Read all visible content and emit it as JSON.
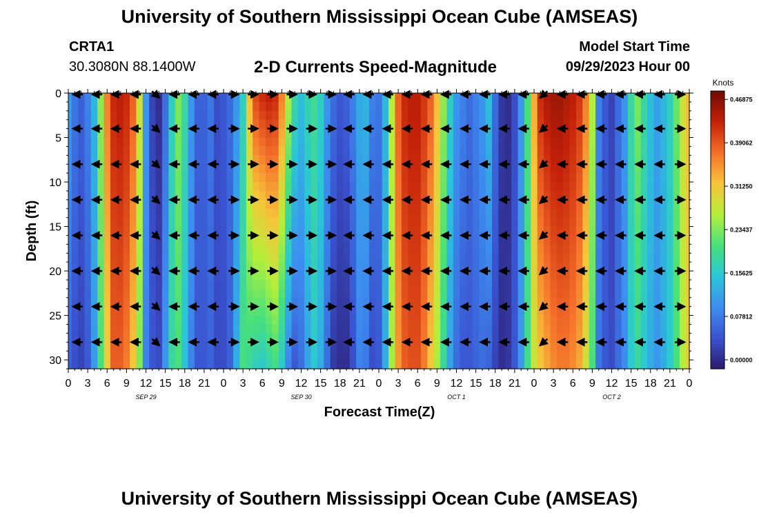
{
  "header": {
    "title": "University of Southern Mississippi Ocean Cube (AMSEAS)",
    "station": "CRTA1",
    "coordinates": "30.3080N  88.1400W",
    "subtitle": "2-D Currents Speed-Magnitude",
    "model_start_label": "Model Start Time",
    "model_start_value": "09/29/2023 Hour 00"
  },
  "footer": {
    "title": "University of Southern Mississippi Ocean Cube (AMSEAS)"
  },
  "chart_data": {
    "type": "heatmap",
    "title": "2-D Currents Speed-Magnitude",
    "xlabel": "Forecast Time(Z)",
    "ylabel": "Depth (ft)",
    "x_range_hours": [
      0,
      96
    ],
    "x_ticks_hours": [
      0,
      3,
      6,
      9,
      12,
      15,
      18,
      21,
      24,
      27,
      30,
      33,
      36,
      39,
      42,
      45,
      48,
      51,
      54,
      57,
      60,
      63,
      66,
      69,
      72,
      75,
      78,
      81,
      84,
      87,
      90,
      93,
      96
    ],
    "x_tick_labels": [
      "0",
      "3",
      "6",
      "9",
      "12",
      "15",
      "18",
      "21",
      "0",
      "3",
      "6",
      "9",
      "12",
      "15",
      "18",
      "21",
      "0",
      "3",
      "6",
      "9",
      "12",
      "15",
      "18",
      "21",
      "0",
      "3",
      "6",
      "9",
      "12",
      "15",
      "18",
      "21",
      "0"
    ],
    "date_labels": [
      {
        "hour": 12,
        "text": "SEP 29"
      },
      {
        "hour": 36,
        "text": "SEP 30"
      },
      {
        "hour": 60,
        "text": "OCT 1"
      },
      {
        "hour": 84,
        "text": "OCT 2"
      }
    ],
    "y_range_ft": [
      0,
      31
    ],
    "y_ticks_ft": [
      0,
      5,
      10,
      15,
      20,
      25,
      30
    ],
    "y_tick_labels": [
      "0",
      "5",
      "10",
      "15",
      "20",
      "25",
      "30"
    ],
    "colorbar": {
      "unit": "Knots",
      "min": 0,
      "max": 0.5,
      "tick_values": [
        0.0,
        0.078125,
        0.15625,
        0.234375,
        0.3125,
        0.390625,
        0.46875
      ],
      "tick_labels": [
        "0.00000",
        "0.07812",
        "0.15625",
        "0.23437",
        "0.31250",
        "0.39062",
        "0.46875"
      ],
      "colors": [
        "#2b1a6b",
        "#3a53d0",
        "#3d8ef0",
        "#29c7d6",
        "#48e07a",
        "#b4ef3a",
        "#f7c43a",
        "#f4702a",
        "#c42108",
        "#6d0c05"
      ]
    },
    "speed_profile": {
      "hours": [
        0,
        1,
        2,
        3,
        4,
        5,
        6,
        7,
        8,
        9,
        10,
        11,
        12,
        13,
        14,
        15,
        16,
        17,
        18,
        19,
        20,
        21,
        22,
        23,
        24,
        25,
        26,
        27,
        28,
        29,
        30,
        31,
        32,
        33,
        34,
        35,
        36,
        37,
        38,
        39,
        40,
        41,
        42,
        43,
        44,
        45,
        46,
        47,
        48,
        49,
        50,
        51,
        52,
        53,
        54,
        55,
        56,
        57,
        58,
        59,
        60,
        61,
        62,
        63,
        64,
        65,
        66,
        67,
        68,
        69,
        70,
        71,
        72,
        73,
        74,
        75,
        76,
        77,
        78,
        79,
        80,
        81,
        82,
        83,
        84,
        85,
        86,
        87,
        88,
        89,
        90,
        91,
        92,
        93,
        94,
        95,
        96
      ],
      "surface_knots": [
        0.13,
        0.09,
        0.07,
        0.1,
        0.15,
        0.26,
        0.38,
        0.44,
        0.45,
        0.44,
        0.4,
        0.3,
        0.12,
        0.04,
        0.02,
        0.08,
        0.18,
        0.25,
        0.2,
        0.12,
        0.07,
        0.07,
        0.09,
        0.05,
        0.06,
        0.08,
        0.12,
        0.18,
        0.34,
        0.42,
        0.44,
        0.45,
        0.44,
        0.38,
        0.28,
        0.2,
        0.16,
        0.19,
        0.21,
        0.18,
        0.12,
        0.08,
        0.06,
        0.07,
        0.1,
        0.14,
        0.15,
        0.1,
        0.09,
        0.15,
        0.28,
        0.4,
        0.44,
        0.45,
        0.45,
        0.43,
        0.4,
        0.34,
        0.26,
        0.18,
        0.12,
        0.1,
        0.08,
        0.1,
        0.12,
        0.16,
        0.08,
        0.03,
        0.02,
        0.05,
        0.12,
        0.22,
        0.35,
        0.44,
        0.46,
        0.47,
        0.47,
        0.46,
        0.45,
        0.43,
        0.38,
        0.28,
        0.1,
        0.06,
        0.04,
        0.08,
        0.12,
        0.2,
        0.25,
        0.2,
        0.16,
        0.13,
        0.15,
        0.18,
        0.24,
        0.3,
        0.34
      ],
      "bottom_knots": [
        0.07,
        0.05,
        0.04,
        0.06,
        0.12,
        0.22,
        0.32,
        0.4,
        0.4,
        0.38,
        0.33,
        0.25,
        0.1,
        0.06,
        0.05,
        0.12,
        0.2,
        0.22,
        0.16,
        0.1,
        0.06,
        0.06,
        0.07,
        0.05,
        0.05,
        0.07,
        0.14,
        0.22,
        0.2,
        0.18,
        0.17,
        0.19,
        0.21,
        0.17,
        0.1,
        0.06,
        0.08,
        0.13,
        0.17,
        0.14,
        0.08,
        0.03,
        0.02,
        0.02,
        0.05,
        0.1,
        0.09,
        0.05,
        0.06,
        0.14,
        0.27,
        0.36,
        0.4,
        0.41,
        0.41,
        0.38,
        0.33,
        0.27,
        0.2,
        0.13,
        0.08,
        0.06,
        0.06,
        0.07,
        0.08,
        0.07,
        0.04,
        0.02,
        0.03,
        0.06,
        0.12,
        0.21,
        0.29,
        0.33,
        0.35,
        0.37,
        0.38,
        0.38,
        0.37,
        0.35,
        0.3,
        0.22,
        0.09,
        0.06,
        0.05,
        0.08,
        0.11,
        0.17,
        0.2,
        0.17,
        0.14,
        0.12,
        0.14,
        0.17,
        0.22,
        0.28,
        0.32
      ]
    },
    "vector_depths_ft": [
      0,
      4,
      8,
      12,
      16,
      20,
      24,
      28
    ],
    "vector_hours": [
      1.5,
      4.5,
      7.5,
      10.5,
      13.5,
      16.5,
      19.5,
      22.5,
      25.5,
      28.5,
      31.5,
      34.5,
      37.5,
      40.5,
      43.5,
      46.5,
      49.5,
      52.5,
      55.5,
      58.5,
      61.5,
      64.5,
      67.5,
      70.5,
      73.5,
      76.5,
      79.5,
      82.5,
      85.5,
      88.5,
      91.5,
      94.5
    ],
    "vector_direction": [
      "W",
      "W",
      "W",
      "W",
      "SE",
      "W",
      "W",
      "W",
      "E",
      "E",
      "E",
      "E",
      "E",
      "E",
      "W",
      "W",
      "W",
      "W",
      "W",
      "W",
      "W",
      "W",
      "W",
      "W",
      "SW",
      "W",
      "W",
      "W",
      "W",
      "W",
      "W",
      "E"
    ]
  }
}
